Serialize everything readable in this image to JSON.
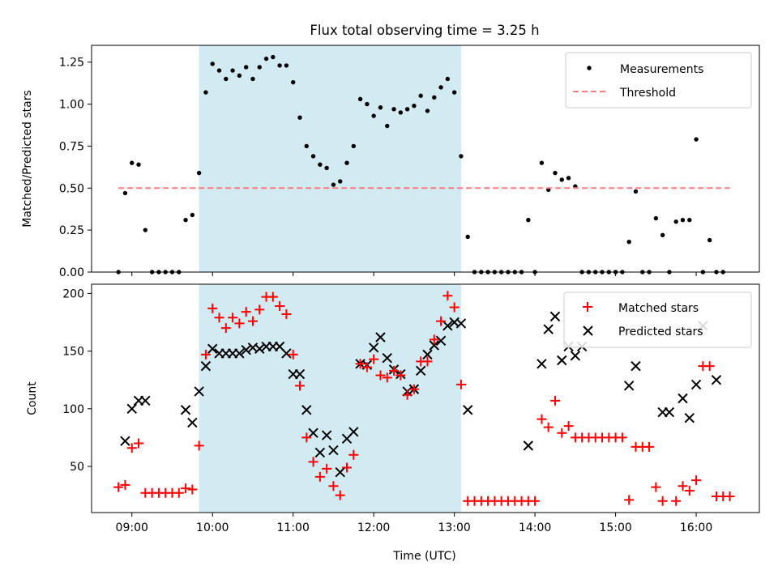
{
  "title": "Flux total observing time = 3.25 h",
  "colors": {
    "shade": "#add8e6",
    "measurement": "#000000",
    "threshold": "#ff7b7b",
    "matched": "#ff0000",
    "predicted": "#000000"
  },
  "chart_data": [
    {
      "type": "scatter",
      "ylabel": "Matched/Predicted stars",
      "ylim": [
        0,
        1.35
      ],
      "yticks": [
        0,
        0.25,
        0.5,
        0.75,
        1.0,
        1.25
      ],
      "ytick_labels": [
        "0.00",
        "0.25",
        "0.50",
        "0.75",
        "1.00",
        "1.25"
      ],
      "xlim": [
        "08:30",
        "16:47"
      ],
      "shaded_interval": [
        "09:50",
        "13:05"
      ],
      "legend": {
        "placement": "top-right",
        "entries": [
          "Measurements",
          "Threshold"
        ]
      },
      "threshold": {
        "name": "Threshold",
        "value": 0.5,
        "x_range": [
          "08:50",
          "16:25"
        ]
      },
      "series": [
        {
          "name": "Measurements",
          "x": [
            "08:50",
            "08:55",
            "09:00",
            "09:05",
            "09:10",
            "09:15",
            "09:20",
            "09:25",
            "09:30",
            "09:35",
            "09:40",
            "09:45",
            "09:50",
            "09:55",
            "10:00",
            "10:05",
            "10:10",
            "10:15",
            "10:20",
            "10:25",
            "10:30",
            "10:35",
            "10:40",
            "10:45",
            "10:50",
            "10:55",
            "11:00",
            "11:05",
            "11:10",
            "11:15",
            "11:20",
            "11:25",
            "11:30",
            "11:35",
            "11:40",
            "11:45",
            "11:50",
            "11:55",
            "12:00",
            "12:05",
            "12:10",
            "12:15",
            "12:20",
            "12:25",
            "12:30",
            "12:35",
            "12:40",
            "12:45",
            "12:50",
            "12:55",
            "13:00",
            "13:05",
            "13:10",
            "13:15",
            "13:20",
            "13:25",
            "13:30",
            "13:35",
            "13:40",
            "13:45",
            "13:50",
            "13:55",
            "14:00",
            "14:05",
            "14:10",
            "14:15",
            "14:20",
            "14:25",
            "14:30",
            "14:35",
            "14:40",
            "14:45",
            "14:50",
            "14:55",
            "15:00",
            "15:05",
            "15:10",
            "15:15",
            "15:20",
            "15:25",
            "15:30",
            "15:35",
            "15:40",
            "15:45",
            "15:50",
            "15:55",
            "16:00",
            "16:05",
            "16:10",
            "16:15",
            "16:20",
            "16:25"
          ],
          "y": [
            0.0,
            0.47,
            0.65,
            0.64,
            0.25,
            0.0,
            0.0,
            0.0,
            0.0,
            0.0,
            0.31,
            0.34,
            0.59,
            1.07,
            1.24,
            1.2,
            1.15,
            1.2,
            1.17,
            1.22,
            1.15,
            1.22,
            1.27,
            1.28,
            1.23,
            1.23,
            1.13,
            0.92,
            0.75,
            0.69,
            0.64,
            0.62,
            0.52,
            0.54,
            0.65,
            0.75,
            1.03,
            1.0,
            0.93,
            0.98,
            0.87,
            0.97,
            0.95,
            0.97,
            0.99,
            1.05,
            0.96,
            1.04,
            1.1,
            1.15,
            1.07,
            0.69,
            0.21,
            0.0,
            0.0,
            0.0,
            0.0,
            0.0,
            0.0,
            0.0,
            0.0,
            0.31,
            0.0,
            0.65,
            0.49,
            0.59,
            0.55,
            0.56,
            0.51,
            0.0,
            0.0,
            0.0,
            0.0,
            0.0,
            0.0,
            0.0,
            0.18,
            0.48,
            0.0,
            0.0,
            0.32,
            0.22,
            0.0,
            0.3,
            0.31,
            0.31,
            0.79,
            0.0,
            0.19,
            0.0,
            0.0,
            null
          ]
        }
      ]
    },
    {
      "type": "scatter",
      "xlabel": "Time (UTC)",
      "ylabel": "Count",
      "ylim": [
        10,
        208
      ],
      "yticks": [
        50,
        100,
        150,
        200
      ],
      "ytick_labels": [
        "50",
        "100",
        "150",
        "200"
      ],
      "xlim": [
        "08:30",
        "16:47"
      ],
      "xticks": [
        "09:00",
        "10:00",
        "11:00",
        "12:00",
        "13:00",
        "14:00",
        "15:00",
        "16:00"
      ],
      "shaded_interval": [
        "09:50",
        "13:05"
      ],
      "legend": {
        "placement": "top-right",
        "entries": [
          "Matched stars",
          "Predicted stars"
        ]
      },
      "series": [
        {
          "name": "Matched stars",
          "x": [
            "08:50",
            "08:55",
            "09:00",
            "09:05",
            "09:10",
            "09:15",
            "09:20",
            "09:25",
            "09:30",
            "09:35",
            "09:40",
            "09:45",
            "09:50",
            "09:55",
            "10:00",
            "10:05",
            "10:10",
            "10:15",
            "10:20",
            "10:25",
            "10:30",
            "10:35",
            "10:40",
            "10:45",
            "10:50",
            "10:55",
            "11:00",
            "11:05",
            "11:10",
            "11:15",
            "11:20",
            "11:25",
            "11:30",
            "11:35",
            "11:40",
            "11:45",
            "11:50",
            "11:55",
            "12:00",
            "12:05",
            "12:10",
            "12:15",
            "12:20",
            "12:25",
            "12:30",
            "12:35",
            "12:40",
            "12:45",
            "12:50",
            "12:55",
            "13:00",
            "13:05",
            "13:10",
            "13:15",
            "13:20",
            "13:25",
            "13:30",
            "13:35",
            "13:40",
            "13:45",
            "13:50",
            "13:55",
            "14:00",
            "14:05",
            "14:10",
            "14:15",
            "14:20",
            "14:25",
            "14:30",
            "14:35",
            "14:40",
            "14:45",
            "14:50",
            "14:55",
            "15:00",
            "15:05",
            "15:10",
            "15:15",
            "15:20",
            "15:25",
            "15:30",
            "15:35",
            "15:40",
            "15:45",
            "15:50",
            "15:55",
            "16:00",
            "16:05",
            "16:10",
            "16:15",
            "16:20",
            "16:25"
          ],
          "y": [
            32,
            34,
            66,
            70,
            27,
            27,
            27,
            27,
            27,
            27,
            31,
            30,
            68,
            147,
            187,
            179,
            170,
            179,
            174,
            184,
            176,
            186,
            197,
            197,
            189,
            182,
            147,
            120,
            75,
            54,
            41,
            48,
            33,
            25,
            49,
            60,
            139,
            136,
            143,
            129,
            127,
            133,
            129,
            112,
            117,
            141,
            141,
            160,
            176,
            198,
            188,
            121,
            20,
            20,
            20,
            20,
            20,
            20,
            20,
            20,
            20,
            20,
            20,
            91,
            84,
            107,
            79,
            85,
            75,
            75,
            75,
            75,
            75,
            75,
            75,
            75,
            21,
            67,
            67,
            67,
            32,
            20,
            null,
            20,
            33,
            29,
            38,
            137,
            137,
            24,
            24,
            24
          ]
        },
        {
          "name": "Predicted stars",
          "x": [
            "08:55",
            "09:00",
            "09:05",
            "09:10",
            "09:40",
            "09:45",
            "09:50",
            "09:55",
            "10:00",
            "10:05",
            "10:10",
            "10:15",
            "10:20",
            "10:25",
            "10:30",
            "10:35",
            "10:40",
            "10:45",
            "10:50",
            "10:55",
            "11:00",
            "11:05",
            "11:10",
            "11:15",
            "11:20",
            "11:25",
            "11:30",
            "11:35",
            "11:40",
            "11:45",
            "11:50",
            "11:55",
            "12:00",
            "12:05",
            "12:10",
            "12:15",
            "12:20",
            "12:25",
            "12:30",
            "12:35",
            "12:40",
            "12:45",
            "12:50",
            "12:55",
            "13:00",
            "13:05",
            "13:10",
            "13:55",
            "14:05",
            "14:10",
            "14:15",
            "14:20",
            "14:25",
            "14:30",
            "14:35",
            "15:10",
            "15:15",
            "15:35",
            "15:40",
            "15:50",
            "15:55",
            "16:00",
            "16:05",
            "16:15"
          ],
          "y": [
            72,
            100,
            107,
            107,
            99,
            88,
            115,
            137,
            152,
            148,
            148,
            148,
            148,
            151,
            153,
            152,
            154,
            154,
            154,
            148,
            130,
            130,
            99,
            79,
            62,
            77,
            64,
            45,
            74,
            80,
            139,
            138,
            153,
            162,
            144,
            134,
            130,
            115,
            117,
            133,
            147,
            155,
            159,
            172,
            175,
            174,
            99,
            68,
            139,
            169,
            180,
            142,
            154,
            146,
            154,
            120,
            137,
            97,
            97,
            109,
            92,
            121,
            172,
            125
          ]
        }
      ]
    }
  ]
}
